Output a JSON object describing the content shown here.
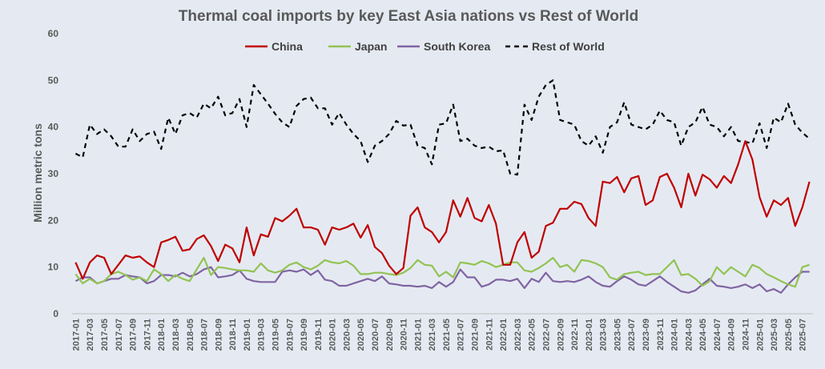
{
  "chart_data": {
    "type": "line",
    "title": "Thermal coal imports by key East Asia nations vs Rest of World",
    "ylabel": "Million metric tons",
    "xlabel": "",
    "ylim": [
      0,
      60
    ],
    "yticks": [
      0,
      10,
      20,
      30,
      40,
      50,
      60
    ],
    "grid": false,
    "legend": "top-center",
    "x_start": "2017-01",
    "x_labels": [
      "2017-01",
      "2017-03",
      "2017-05",
      "2017-07",
      "2017-09",
      "2017-11",
      "2018-01",
      "2018-03",
      "2018-05",
      "2018-07",
      "2018-09",
      "2018-11",
      "2019-01",
      "2019-03",
      "2019-05",
      "2019-07",
      "2019-09",
      "2019-11",
      "2020-01",
      "2020-03",
      "2020-05",
      "2020-07",
      "2020-09",
      "2020-11",
      "2021-01",
      "2021-03",
      "2021-05",
      "2021-07",
      "2021-09",
      "2021-11",
      "2022-01",
      "2022-03",
      "2022-05",
      "2022-07",
      "2022-09",
      "2022-11",
      "2023-01",
      "2023-03",
      "2023-05",
      "2023-07",
      "2023-09",
      "2023-11",
      "2024-01",
      "2024-03",
      "2024-05",
      "2024-07",
      "2024-09",
      "2024-11",
      "2025-01",
      "2025-03",
      "2025-05",
      "2025-07"
    ],
    "series": [
      {
        "name": "China",
        "color": "#c00000",
        "dash": "solid",
        "values": [
          11.0,
          7.5,
          11.0,
          12.5,
          12.0,
          8.5,
          10.5,
          12.5,
          12.0,
          12.3,
          11.0,
          10.0,
          15.3,
          15.8,
          16.5,
          13.5,
          13.8,
          16.0,
          16.8,
          14.5,
          11.3,
          14.8,
          14.0,
          11.0,
          18.5,
          12.5,
          17.0,
          16.5,
          20.5,
          19.8,
          21.0,
          22.5,
          18.5,
          18.5,
          18.0,
          14.8,
          18.5,
          18.0,
          18.5,
          19.3,
          16.3,
          19.0,
          14.3,
          13.0,
          10.3,
          8.5,
          9.8,
          21.0,
          22.8,
          18.5,
          17.5,
          15.3,
          17.5,
          24.3,
          20.8,
          24.8,
          20.5,
          19.8,
          23.3,
          19.3,
          10.5,
          10.5,
          15.3,
          17.5,
          12.0,
          13.3,
          18.8,
          19.5,
          22.5,
          22.5,
          24.0,
          23.5,
          20.5,
          18.8,
          28.3,
          28.0,
          29.3,
          26.0,
          29.0,
          29.5,
          23.3,
          24.3,
          29.3,
          30.0,
          27.0,
          22.8,
          30.0,
          25.3,
          29.8,
          28.8,
          27.0,
          29.5,
          28.0,
          32.0,
          37.0,
          33.0,
          25.0,
          20.8,
          24.3,
          23.3,
          24.8,
          18.8,
          22.8,
          28.3
        ]
      },
      {
        "name": "Japan",
        "color": "#92c353",
        "dash": "solid",
        "values": [
          8.5,
          6.5,
          7.5,
          6.5,
          7.0,
          8.5,
          9.0,
          8.3,
          7.3,
          7.8,
          7.0,
          9.5,
          8.5,
          7.0,
          8.3,
          7.5,
          7.0,
          9.5,
          12.0,
          8.3,
          10.0,
          9.8,
          9.5,
          9.3,
          9.3,
          9.0,
          10.8,
          9.3,
          8.8,
          9.3,
          10.5,
          11.0,
          10.0,
          9.5,
          10.3,
          11.5,
          11.0,
          10.8,
          11.3,
          10.3,
          8.5,
          8.5,
          8.8,
          8.8,
          8.5,
          8.3,
          8.8,
          9.8,
          11.5,
          10.5,
          10.3,
          8.0,
          9.0,
          7.8,
          11.0,
          10.8,
          10.5,
          11.3,
          10.8,
          10.0,
          10.5,
          11.0,
          11.0,
          9.3,
          9.0,
          9.8,
          10.8,
          12.0,
          10.0,
          10.5,
          9.0,
          11.5,
          11.3,
          10.8,
          10.0,
          7.8,
          7.3,
          8.5,
          8.8,
          9.0,
          8.3,
          8.5,
          8.5,
          10.0,
          11.5,
          8.3,
          8.5,
          7.5,
          6.0,
          7.0,
          10.0,
          8.5,
          10.0,
          9.0,
          8.0,
          10.5,
          9.8,
          8.5,
          7.8,
          7.0,
          6.3,
          5.8,
          10.0,
          10.5
        ]
      },
      {
        "name": "South Korea",
        "color": "#8064a2",
        "dash": "solid",
        "values": [
          7.0,
          7.8,
          7.8,
          6.5,
          7.0,
          7.5,
          7.5,
          8.3,
          8.0,
          7.8,
          6.5,
          7.0,
          8.3,
          8.3,
          8.0,
          8.8,
          8.0,
          8.5,
          9.5,
          10.0,
          7.8,
          8.0,
          8.3,
          9.3,
          7.5,
          7.0,
          6.8,
          6.8,
          6.8,
          9.0,
          9.3,
          9.0,
          9.5,
          8.3,
          9.3,
          7.3,
          7.0,
          6.0,
          6.0,
          6.5,
          7.0,
          7.5,
          7.0,
          8.0,
          6.5,
          6.3,
          6.0,
          6.0,
          5.8,
          6.0,
          5.5,
          6.8,
          5.8,
          6.8,
          9.5,
          7.8,
          7.8,
          5.8,
          6.3,
          7.3,
          7.3,
          7.0,
          7.5,
          5.5,
          7.5,
          6.8,
          8.8,
          7.0,
          6.8,
          7.0,
          6.8,
          7.3,
          8.0,
          6.8,
          6.0,
          5.8,
          7.0,
          8.0,
          7.3,
          6.3,
          6.0,
          7.0,
          8.0,
          6.8,
          5.8,
          4.8,
          4.5,
          5.0,
          6.3,
          7.5,
          6.0,
          5.8,
          5.5,
          5.8,
          6.3,
          5.5,
          6.3,
          4.8,
          5.3,
          4.5,
          6.3,
          7.8,
          9.0,
          9.0
        ]
      },
      {
        "name": "Rest of World",
        "color": "#000000",
        "dash": "dashed",
        "values": [
          34.3,
          33.5,
          40.5,
          38.5,
          39.5,
          38.0,
          35.8,
          35.8,
          39.5,
          37.0,
          38.5,
          39.0,
          35.3,
          42.0,
          38.5,
          42.5,
          43.0,
          42.0,
          45.0,
          44.0,
          46.5,
          42.5,
          43.0,
          46.0,
          40.0,
          49.0,
          47.0,
          45.0,
          42.8,
          41.0,
          40.0,
          44.5,
          46.0,
          46.3,
          44.0,
          44.0,
          40.5,
          43.0,
          40.5,
          38.5,
          37.0,
          32.5,
          36.0,
          37.0,
          38.5,
          41.3,
          40.3,
          40.5,
          36.0,
          35.5,
          32.0,
          40.5,
          40.8,
          44.8,
          37.0,
          37.5,
          36.0,
          35.5,
          35.8,
          34.8,
          35.0,
          30.0,
          29.8,
          44.8,
          41.5,
          46.5,
          49.0,
          50.0,
          41.5,
          41.0,
          40.5,
          37.0,
          36.0,
          38.0,
          34.5,
          40.0,
          41.0,
          45.3,
          40.5,
          40.0,
          39.5,
          40.5,
          43.5,
          41.5,
          41.0,
          36.0,
          40.0,
          41.0,
          44.3,
          40.5,
          40.0,
          38.0,
          40.0,
          37.0,
          36.8,
          36.5,
          40.8,
          35.5,
          42.0,
          41.0,
          45.0,
          40.5,
          38.8,
          37.5
        ]
      }
    ]
  }
}
